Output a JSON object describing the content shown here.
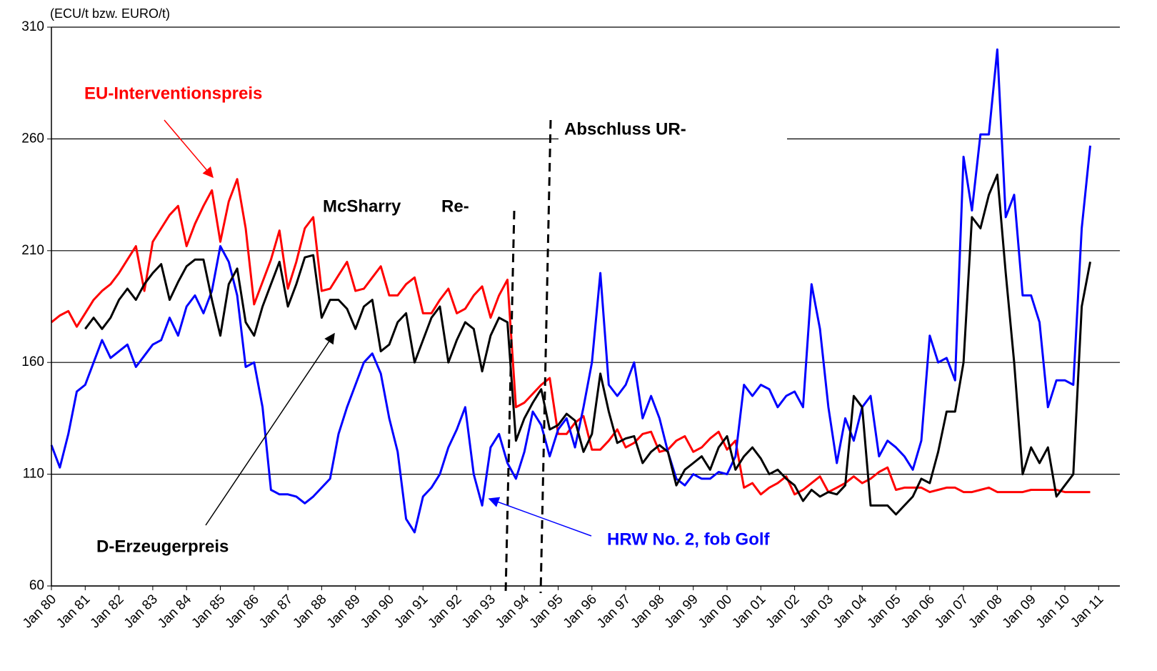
{
  "chart_data": {
    "type": "line",
    "y_label": "(ECU/t bzw. EURO/t)",
    "annotations": [
      "McSharry Re-",
      "Abschluss UR-"
    ],
    "categories": [
      "Jan 80",
      null,
      null,
      null,
      "Jan 81",
      null,
      null,
      null,
      "Jan 82",
      null,
      null,
      null,
      "Jan 83",
      null,
      null,
      null,
      "Jan 84",
      null,
      null,
      null,
      "Jan 85",
      null,
      null,
      null,
      "Jan 86",
      null,
      null,
      null,
      "Jan 87",
      null,
      null,
      null,
      "Jan 88",
      null,
      null,
      null,
      "Jan 89",
      null,
      null,
      null,
      "Jan 90",
      null,
      null,
      null,
      "Jan 91",
      null,
      null,
      null,
      "Jan 92",
      null,
      null,
      null,
      "Jan 93",
      null,
      null,
      null,
      "Jan 94",
      null,
      null,
      null,
      "Jan 95",
      null,
      null,
      null,
      "Jan 96",
      null,
      null,
      null,
      "Jan 97",
      null,
      null,
      null,
      "Jan 98",
      null,
      null,
      null,
      "Jan 99",
      null,
      null,
      null,
      "Jan 00",
      null,
      null,
      null,
      "Jan 01",
      null,
      null,
      null,
      "Jan 02",
      null,
      null,
      null,
      "Jan 03",
      null,
      null,
      null,
      "Jan 04",
      null,
      null,
      null,
      "Jan 05",
      null,
      null,
      null,
      "Jan 06",
      null,
      null,
      null,
      "Jan 07",
      null,
      null,
      null,
      "Jan 08",
      null,
      null,
      null,
      "Jan 09",
      null,
      null,
      null,
      "Jan 10",
      null,
      null,
      null,
      "Jan 11",
      null,
      null
    ],
    "series": [
      {
        "name": "EU-Interventionspreis",
        "color": "#ff0000",
        "values": [
          178,
          181,
          183,
          176,
          182,
          188,
          192,
          195,
          200,
          206,
          212,
          192,
          214,
          220,
          226,
          230,
          212,
          222,
          230,
          237,
          214,
          232,
          242,
          220,
          186,
          196,
          206,
          219,
          193,
          205,
          220,
          225,
          192,
          193,
          199,
          205,
          192,
          193,
          198,
          203,
          190,
          190,
          195,
          198,
          182,
          182,
          188,
          193,
          182,
          184,
          190,
          194,
          180,
          190,
          197,
          140,
          142,
          146,
          150,
          153,
          128,
          128,
          133,
          136,
          121,
          121,
          125,
          130,
          122,
          124,
          128,
          129,
          120,
          121,
          125,
          127,
          120,
          122,
          126,
          129,
          121,
          125,
          104,
          106,
          101,
          104,
          106,
          109,
          101,
          103,
          106,
          109,
          102,
          104,
          106,
          109,
          106,
          108,
          111,
          113,
          103,
          104,
          104,
          104,
          102,
          103,
          104,
          104,
          102,
          102,
          103,
          104,
          102,
          102,
          102,
          102,
          103,
          103,
          103,
          103,
          102,
          102,
          102,
          102,
          null,
          null,
          null
        ]
      },
      {
        "name": "HRW No. 2, fob Golf",
        "color": "#0000ff",
        "values": [
          123,
          113,
          128,
          147,
          150,
          160,
          170,
          162,
          165,
          168,
          158,
          163,
          168,
          170,
          180,
          172,
          185,
          190,
          182,
          192,
          212,
          205,
          190,
          158,
          160,
          140,
          103,
          101,
          101,
          100,
          97,
          100,
          104,
          108,
          128,
          140,
          150,
          160,
          164,
          155,
          135,
          120,
          90,
          84,
          100,
          104,
          110,
          122,
          130,
          140,
          110,
          96,
          122,
          128,
          115,
          108,
          120,
          138,
          132,
          118,
          130,
          135,
          122,
          140,
          160,
          200,
          150,
          145,
          150,
          160,
          135,
          145,
          135,
          120,
          108,
          105,
          110,
          108,
          108,
          111,
          110,
          118,
          150,
          145,
          150,
          148,
          140,
          145,
          147,
          140,
          195,
          175,
          140,
          115,
          135,
          125,
          140,
          145,
          118,
          125,
          122,
          118,
          112,
          125,
          172,
          160,
          162,
          152,
          252,
          228,
          262,
          262,
          300,
          225,
          235,
          190,
          190,
          178,
          140,
          152,
          152,
          150,
          220,
          257,
          null,
          null,
          null
        ]
      },
      {
        "name": "D-Erzeugerpreis",
        "color": "#000000",
        "values": [
          null,
          null,
          null,
          null,
          175,
          180,
          175,
          180,
          188,
          193,
          188,
          195,
          200,
          204,
          188,
          196,
          203,
          206,
          206,
          188,
          172,
          195,
          202,
          178,
          172,
          185,
          195,
          205,
          185,
          195,
          207,
          208,
          180,
          188,
          188,
          184,
          175,
          185,
          188,
          165,
          168,
          178,
          182,
          160,
          170,
          180,
          185,
          160,
          170,
          178,
          175,
          156,
          172,
          180,
          178,
          125,
          135,
          142,
          148,
          130,
          132,
          137,
          134,
          120,
          128,
          155,
          138,
          124,
          126,
          127,
          115,
          120,
          123,
          120,
          105,
          112,
          115,
          118,
          112,
          122,
          127,
          112,
          118,
          122,
          117,
          110,
          112,
          108,
          105,
          98,
          103,
          100,
          102,
          101,
          105,
          145,
          140,
          96,
          96,
          96,
          92,
          96,
          100,
          108,
          106,
          120,
          138,
          138,
          160,
          225,
          220,
          235,
          244,
          200,
          160,
          110,
          122,
          115,
          122,
          100,
          105,
          110,
          185,
          205,
          null,
          null,
          null
        ]
      }
    ],
    "ylim": [
      60,
      310
    ],
    "yticks": [
      60,
      110,
      160,
      210,
      260,
      310
    ],
    "grid": true
  }
}
